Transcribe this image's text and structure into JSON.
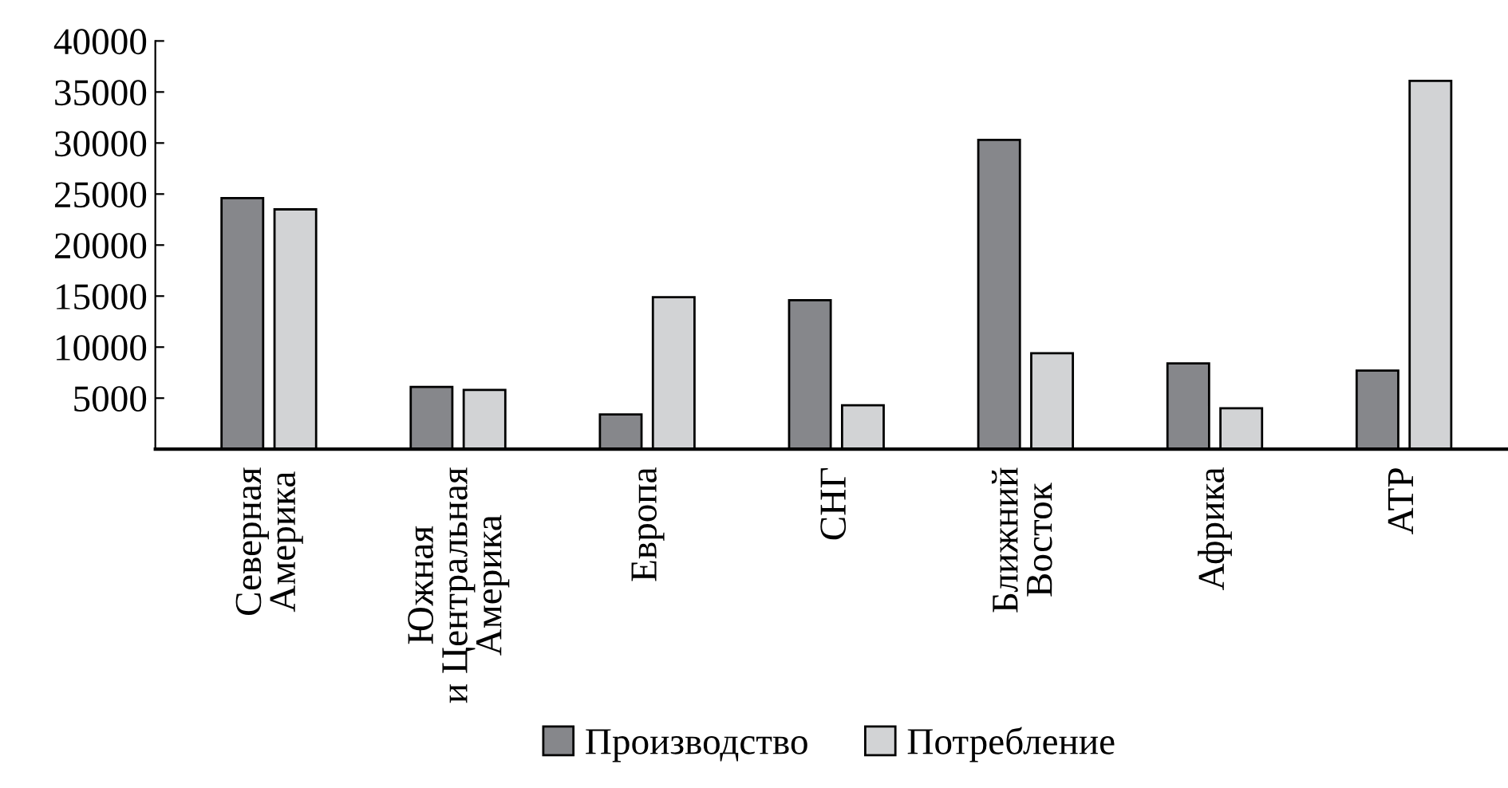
{
  "chart_data": {
    "type": "bar",
    "categories": [
      "Северная\nАмерика",
      "Южная\nи Центральная\nАмерика",
      "Европа",
      "СНГ",
      "Ближний\nВосток",
      "Африка",
      "АТР"
    ],
    "series": [
      {
        "name": "Производство",
        "color": "#86878b",
        "values": [
          24600,
          6100,
          3400,
          14600,
          30300,
          8400,
          7700
        ]
      },
      {
        "name": "Потребление",
        "color": "#d2d3d5",
        "values": [
          23500,
          5800,
          14900,
          4300,
          9400,
          4000,
          36100
        ]
      }
    ],
    "ylim": [
      0,
      40000
    ],
    "yticks": [
      {
        "value": 0,
        "label": null
      },
      5000,
      10000,
      15000,
      20000,
      25000,
      30000,
      35000,
      40000
    ],
    "grid": false,
    "legend": "bottom"
  }
}
